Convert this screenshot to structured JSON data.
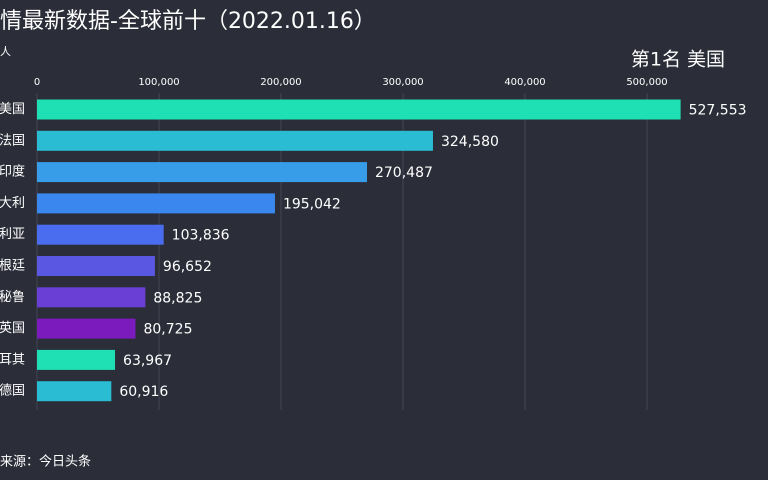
{
  "chart_data": {
    "type": "bar",
    "orientation": "horizontal",
    "title": "情最新数据-全球前十（2022.01.16）",
    "unit_label": "人",
    "rank_label": "第1名 美国",
    "source": "来源：今日头条",
    "categories": [
      "美国",
      "法国",
      "印度",
      "大利",
      "利亚",
      "根廷",
      "秘鲁",
      "英国",
      "耳其",
      "德国"
    ],
    "values": [
      527553,
      324580,
      270487,
      195042,
      103836,
      96652,
      88825,
      80725,
      63967,
      60916
    ],
    "value_labels": [
      "527,553",
      "324,580",
      "270,487",
      "195,042",
      "103,836",
      "96,652",
      "88,825",
      "80,725",
      "63,967",
      "60,916"
    ],
    "colors": [
      "#1fe0b4",
      "#29bcd2",
      "#389de8",
      "#3a87ef",
      "#4a6df0",
      "#5a58e2",
      "#6a3fd6",
      "#7b1bbd",
      "#1fe0b4",
      "#29bcd2"
    ],
    "xlim": [
      0,
      600000
    ],
    "xticks": [
      0,
      {
        "value": 100000,
        "label": "100,000"
      },
      {
        "value": 200000,
        "label": "200,000"
      },
      {
        "value": 300000,
        "label": "300,000"
      },
      {
        "value": 400000,
        "label": "400,000"
      },
      {
        "value": 500000,
        "label": "500,000"
      }
    ],
    "grid": true
  }
}
